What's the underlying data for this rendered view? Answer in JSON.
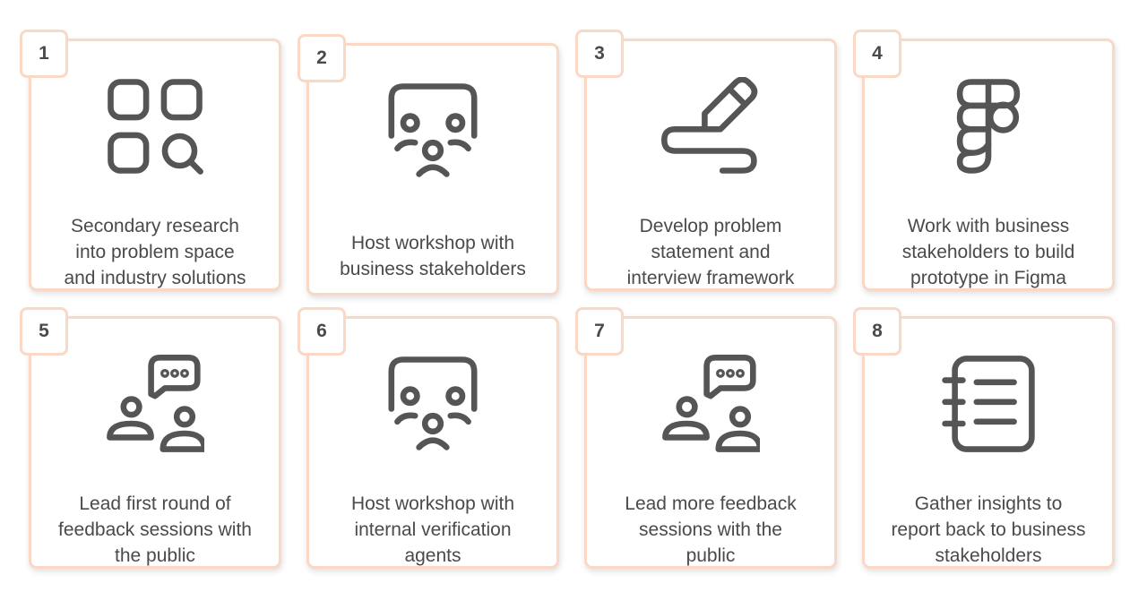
{
  "steps": [
    {
      "number": "1",
      "icon": "grid-search-icon",
      "lines": [
        "Secondary research",
        "into problem space",
        "and industry solutions"
      ]
    },
    {
      "number": "2",
      "icon": "workshop-people-icon",
      "lines": [
        "Host workshop with",
        "business stakeholders"
      ]
    },
    {
      "number": "3",
      "icon": "pencil-scribble-icon",
      "lines": [
        "Develop problem",
        "statement and",
        "interview framework"
      ]
    },
    {
      "number": "4",
      "icon": "figma-icon",
      "lines": [
        "Work with business",
        "stakeholders to build",
        "prototype in Figma"
      ]
    },
    {
      "number": "5",
      "icon": "people-chat-icon",
      "lines": [
        "Lead first round of",
        "feedback sessions with",
        "the public"
      ]
    },
    {
      "number": "6",
      "icon": "workshop-people-icon",
      "lines": [
        "Host workshop with",
        "internal verification",
        "agents"
      ]
    },
    {
      "number": "7",
      "icon": "people-chat-icon",
      "lines": [
        "Lead more feedback",
        "sessions with the",
        "public"
      ]
    },
    {
      "number": "8",
      "icon": "notebook-icon",
      "lines": [
        "Gather insights to",
        "report back to business",
        "stakeholders"
      ]
    }
  ],
  "colors": {
    "border": "#f9d8c6",
    "icon_stroke": "#555555",
    "text": "#4a4a4a"
  }
}
